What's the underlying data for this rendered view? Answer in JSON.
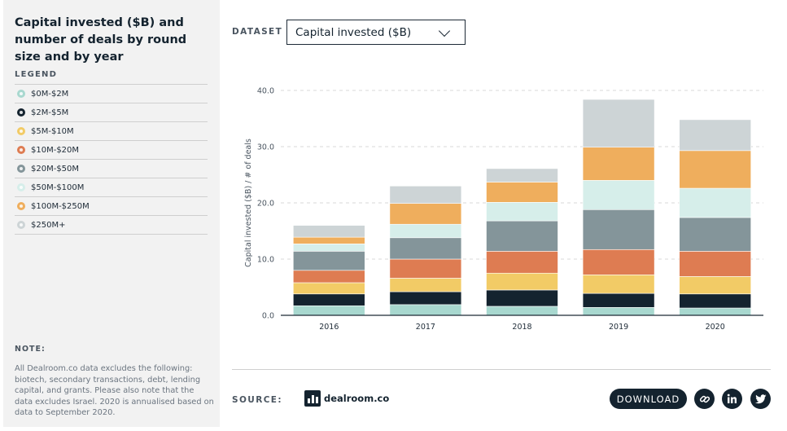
{
  "sidebar": {
    "title": "Capital invested ($B) and number of deals by round size and by year",
    "legend_heading": "LEGEND",
    "note_heading": "NOTE:",
    "note_text": "All Dealroom.co data excludes the following: biotech, secondary transactions, debt, lending capital, and grants. Please also note that the data excludes Israel. 2020 is annualised based on data to September 2020."
  },
  "controls": {
    "dataset_label": "DATASET",
    "dataset_value": "Capital invested ($B)"
  },
  "footer": {
    "source_label": "SOURCE:",
    "logo_text": "dealroom.co",
    "download_label": "DOWNLOAD",
    "icons": [
      "link-icon",
      "linkedin-icon",
      "twitter-icon"
    ]
  },
  "chart_data": {
    "type": "bar",
    "stacked": true,
    "title": "Capital invested ($B) and number of deals by round size and by year",
    "ylabel": "Capital invested ($B) / # of deals",
    "xlabel": "",
    "ylim": [
      0,
      40
    ],
    "yticks": [
      "0.0",
      "10.0",
      "20.0",
      "30.0",
      "40.0"
    ],
    "grid": "horizontal-dashed",
    "categories": [
      "2016",
      "2017",
      "2018",
      "2019",
      "2020"
    ],
    "series": [
      {
        "name": "$0M-$2M",
        "color": "#a8d8cf",
        "values": [
          1.7,
          1.9,
          1.6,
          1.4,
          1.3
        ]
      },
      {
        "name": "$2M-$5M",
        "color": "#14232f",
        "values": [
          2.1,
          2.3,
          2.9,
          2.5,
          2.5
        ]
      },
      {
        "name": "$5M-$10M",
        "color": "#f2cb66",
        "values": [
          2.0,
          2.4,
          3.0,
          3.3,
          3.1
        ]
      },
      {
        "name": "$10M-$20M",
        "color": "#de7c52",
        "values": [
          2.2,
          3.4,
          3.9,
          4.5,
          4.5
        ]
      },
      {
        "name": "$20M-$50M",
        "color": "#84959a",
        "values": [
          3.4,
          3.8,
          5.4,
          7.1,
          6.0
        ]
      },
      {
        "name": "$50M-$100M",
        "color": "#d6eeea",
        "values": [
          1.3,
          2.4,
          3.3,
          5.2,
          5.2
        ]
      },
      {
        "name": "$100M-$250M",
        "color": "#efae5d",
        "values": [
          1.2,
          3.7,
          3.6,
          5.9,
          6.7
        ]
      },
      {
        "name": "$250M+",
        "color": "#cdd4d6",
        "values": [
          2.1,
          3.1,
          2.4,
          8.5,
          5.5
        ]
      }
    ]
  }
}
